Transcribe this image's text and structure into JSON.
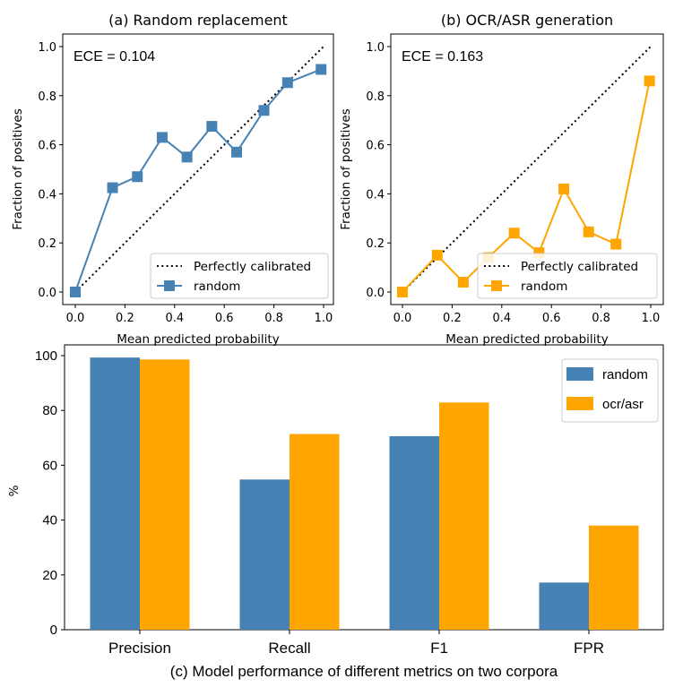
{
  "chart_data": [
    {
      "type": "line",
      "title": "(a) Random replacement",
      "annotation": "ECE = 0.104",
      "xlabel": "Mean predicted probability",
      "ylabel": "Fraction of positives",
      "xlim": [
        0,
        1
      ],
      "ylim": [
        0,
        1
      ],
      "xticks": [
        "0.0",
        "0.2",
        "0.4",
        "0.6",
        "0.8",
        "1.0"
      ],
      "yticks": [
        "0.0",
        "0.2",
        "0.4",
        "0.6",
        "0.8",
        "1.0"
      ],
      "legend_position": "lower-right",
      "reference": {
        "name": "Perfectly calibrated",
        "x": [
          0,
          1
        ],
        "y": [
          0,
          1
        ],
        "style": "dotted",
        "color": "#000000"
      },
      "series": [
        {
          "name": "random",
          "color": "#4682b4",
          "marker": "square",
          "x": [
            0.0,
            0.15,
            0.25,
            0.35,
            0.45,
            0.55,
            0.65,
            0.76,
            0.855,
            0.99
          ],
          "y": [
            0.0,
            0.425,
            0.47,
            0.63,
            0.55,
            0.675,
            0.57,
            0.74,
            0.853,
            0.907
          ]
        }
      ]
    },
    {
      "type": "line",
      "title": "(b) OCR/ASR generation",
      "annotation": "ECE = 0.163",
      "xlabel": "Mean predicted probability",
      "ylabel": "Fraction of positives",
      "xlim": [
        0,
        1
      ],
      "ylim": [
        0,
        1
      ],
      "xticks": [
        "0.0",
        "0.2",
        "0.4",
        "0.6",
        "0.8",
        "1.0"
      ],
      "yticks": [
        "0.0",
        "0.2",
        "0.4",
        "0.6",
        "0.8",
        "1.0"
      ],
      "legend_position": "lower-right",
      "reference": {
        "name": "Perfectly calibrated",
        "x": [
          0,
          1
        ],
        "y": [
          0,
          1
        ],
        "style": "dotted",
        "color": "#000000"
      },
      "series": [
        {
          "name": "random",
          "color": "#ffa500",
          "marker": "square",
          "x": [
            0.0,
            0.14,
            0.245,
            0.345,
            0.45,
            0.55,
            0.65,
            0.75,
            0.86,
            0.995
          ],
          "y": [
            0.0,
            0.15,
            0.04,
            0.14,
            0.24,
            0.16,
            0.42,
            0.245,
            0.195,
            0.86
          ]
        }
      ]
    },
    {
      "type": "bar",
      "title": "(c) Model performance of different metrics on two corpora",
      "xlabel": "",
      "ylabel": "%",
      "ylim": [
        0,
        104
      ],
      "yticks": [
        "0",
        "20",
        "40",
        "60",
        "80",
        "100"
      ],
      "categories": [
        "Precision",
        "Recall",
        "F1",
        "FPR"
      ],
      "legend_position": "top-right",
      "series": [
        {
          "name": "random",
          "color": "#4682b4",
          "values": [
            99.3,
            54.8,
            70.6,
            17.2
          ]
        },
        {
          "name": "ocr/asr",
          "color": "#ffa500",
          "values": [
            98.6,
            71.4,
            82.9,
            38.0
          ]
        }
      ]
    }
  ]
}
